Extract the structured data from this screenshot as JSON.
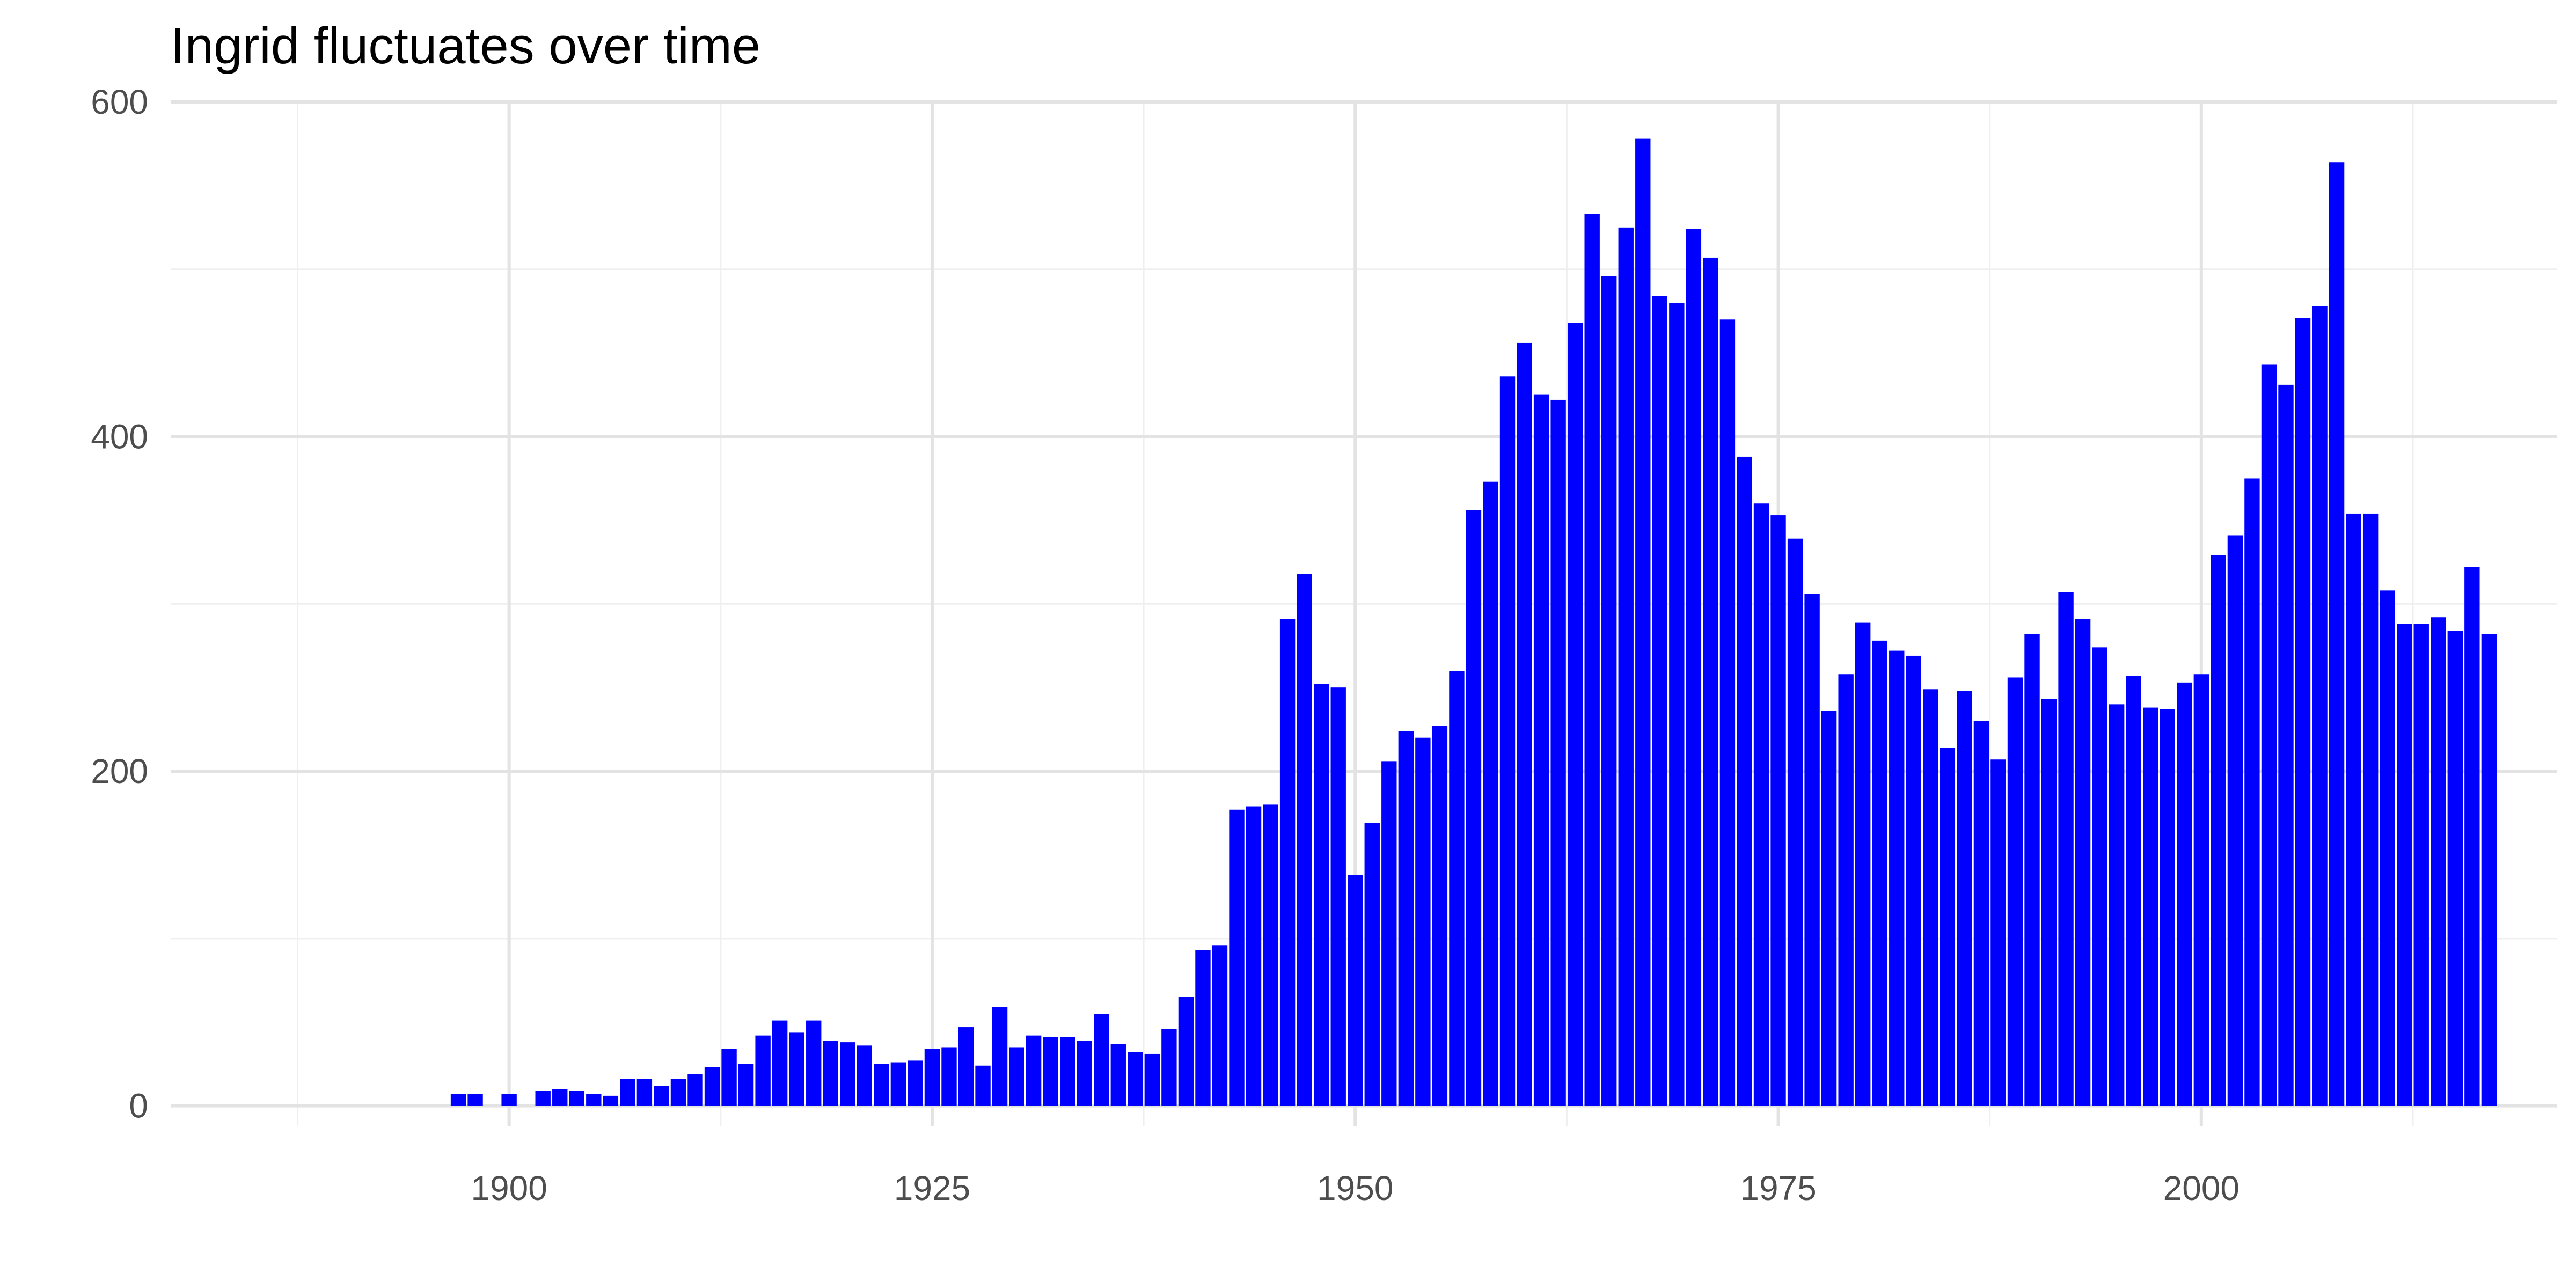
{
  "colors": {
    "bar": "#0000ff",
    "grid_major": "#e3e3e3",
    "grid_minor": "#efefef",
    "background": "#ffffff"
  },
  "chart_data": {
    "type": "bar",
    "title": "Ingrid fluctuates over time",
    "xlabel": "",
    "ylabel": "",
    "xlim": [
      1880,
      2021
    ],
    "ylim": [
      -12,
      600
    ],
    "x_ticks": [
      1900,
      1925,
      1950,
      1975,
      2000
    ],
    "y_ticks": [
      0,
      200,
      400,
      600
    ],
    "grid": true,
    "legend": "none",
    "x": [
      1897,
      1898,
      1900,
      1902,
      1903,
      1904,
      1905,
      1906,
      1907,
      1908,
      1909,
      1910,
      1911,
      1912,
      1913,
      1914,
      1915,
      1916,
      1917,
      1918,
      1919,
      1920,
      1921,
      1922,
      1923,
      1924,
      1925,
      1926,
      1927,
      1928,
      1929,
      1930,
      1931,
      1932,
      1933,
      1934,
      1935,
      1936,
      1937,
      1938,
      1939,
      1940,
      1941,
      1942,
      1943,
      1944,
      1945,
      1946,
      1947,
      1948,
      1949,
      1950,
      1951,
      1952,
      1953,
      1954,
      1955,
      1956,
      1957,
      1958,
      1959,
      1960,
      1961,
      1962,
      1963,
      1964,
      1965,
      1966,
      1967,
      1968,
      1969,
      1970,
      1971,
      1972,
      1973,
      1974,
      1975,
      1976,
      1977,
      1978,
      1979,
      1980,
      1981,
      1982,
      1983,
      1984,
      1985,
      1986,
      1987,
      1988,
      1989,
      1990,
      1991,
      1992,
      1993,
      1994,
      1995,
      1996,
      1997,
      1998,
      1999,
      2000,
      2001,
      2002,
      2003,
      2004,
      2005,
      2006,
      2007,
      2008,
      2009,
      2010,
      2011,
      2012,
      2013,
      2014,
      2015,
      2016,
      2017
    ],
    "values": [
      7,
      7,
      7,
      9,
      10,
      9,
      7,
      6,
      16,
      16,
      12,
      16,
      19,
      23,
      34,
      25,
      42,
      51,
      44,
      51,
      39,
      38,
      36,
      25,
      26,
      27,
      34,
      35,
      47,
      24,
      59,
      35,
      42,
      41,
      41,
      39,
      55,
      37,
      32,
      31,
      46,
      65,
      93,
      96,
      177,
      179,
      180,
      291,
      318,
      252,
      250,
      138,
      169,
      206,
      224,
      220,
      227,
      260,
      356,
      373,
      436,
      456,
      425,
      422,
      468,
      533,
      496,
      525,
      578,
      484,
      480,
      524,
      507,
      470,
      388,
      360,
      353,
      339,
      306,
      236,
      258,
      289,
      278,
      272,
      269,
      249,
      214,
      248,
      230,
      207,
      256,
      282,
      243,
      307,
      291,
      274,
      240,
      257,
      238,
      237,
      253,
      258,
      329,
      341,
      375,
      443,
      431,
      471,
      478,
      564,
      354,
      354,
      308,
      288,
      288,
      292,
      284,
      322,
      282
    ]
  }
}
